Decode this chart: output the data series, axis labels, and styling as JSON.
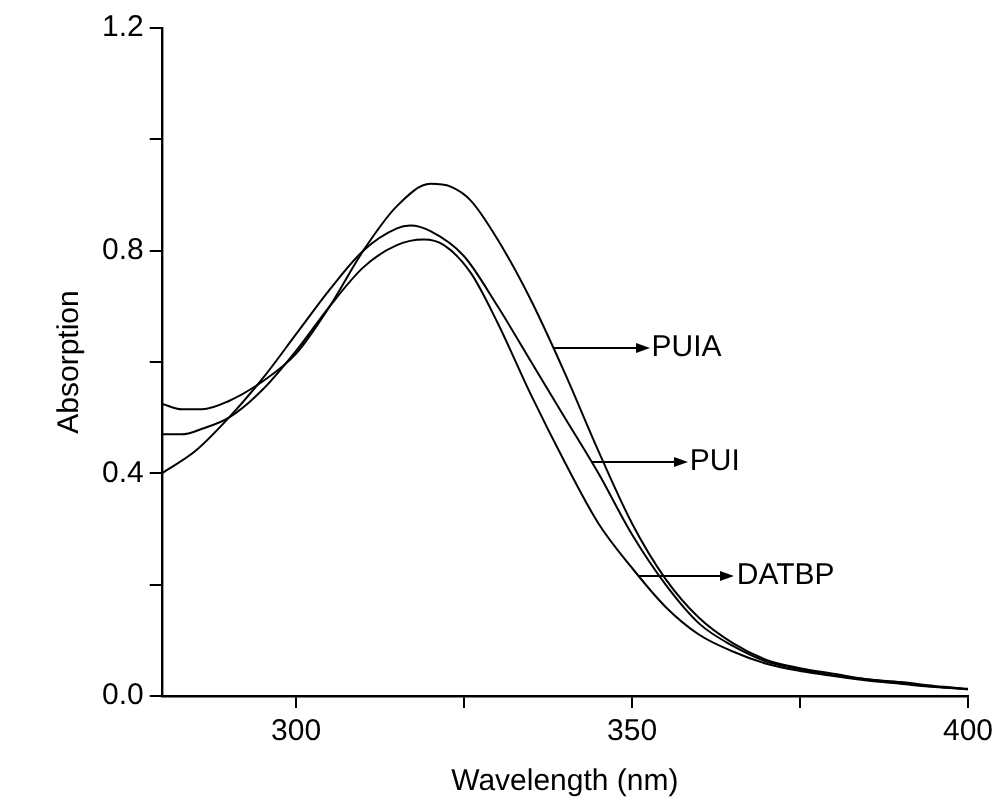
{
  "chart_data": {
    "type": "line",
    "xlabel": "Wavelength (nm)",
    "ylabel": "Absorption",
    "xlim": [
      280,
      400
    ],
    "ylim": [
      0,
      1.2
    ],
    "xticks": [
      300,
      {
        "value": 325,
        "label": null
      },
      350,
      {
        "value": 375,
        "label": null
      },
      400
    ],
    "yticks": [
      "0.0",
      {
        "value": 0.2,
        "label": null
      },
      {
        "value": 0.4,
        "label": "0.4"
      },
      {
        "value": 0.6,
        "label": null
      },
      {
        "value": 0.8,
        "label": "0.8"
      },
      {
        "value": 1.0,
        "label": null
      },
      {
        "value": 1.2,
        "label": "1.2"
      }
    ],
    "grid": false,
    "legend": "right",
    "marker": "none",
    "line_style": "solid",
    "series": [
      {
        "name": "PUIA",
        "color": "#000000",
        "x": [
          280,
          283,
          286,
          290,
          295,
          300,
          305,
          310,
          315,
          320,
          323,
          326,
          330,
          335,
          340,
          345,
          350,
          355,
          360,
          365,
          370,
          375,
          380,
          385,
          390,
          395,
          400
        ],
        "values": [
          0.525,
          0.515,
          0.515,
          0.53,
          0.565,
          0.615,
          0.7,
          0.8,
          0.88,
          0.92,
          0.915,
          0.89,
          0.82,
          0.71,
          0.58,
          0.44,
          0.31,
          0.21,
          0.14,
          0.095,
          0.065,
          0.05,
          0.04,
          0.03,
          0.025,
          0.018,
          0.013
        ]
      },
      {
        "name": "PUI",
        "color": "#000000",
        "x": [
          280,
          285,
          290,
          295,
          300,
          305,
          310,
          315,
          317,
          320,
          325,
          330,
          335,
          340,
          345,
          350,
          355,
          360,
          365,
          370,
          375,
          380,
          385,
          390,
          395,
          400
        ],
        "values": [
          0.4,
          0.44,
          0.5,
          0.57,
          0.65,
          0.73,
          0.8,
          0.84,
          0.845,
          0.835,
          0.79,
          0.7,
          0.6,
          0.5,
          0.4,
          0.29,
          0.2,
          0.13,
          0.09,
          0.062,
          0.048,
          0.037,
          0.03,
          0.023,
          0.017,
          0.012
        ]
      },
      {
        "name": "DATBP",
        "color": "#000000",
        "x": [
          280,
          283,
          286,
          290,
          295,
          300,
          305,
          310,
          315,
          319,
          322,
          326,
          330,
          335,
          340,
          345,
          350,
          355,
          360,
          365,
          370,
          375,
          380,
          385,
          390,
          395,
          400
        ],
        "values": [
          0.47,
          0.47,
          0.48,
          0.5,
          0.55,
          0.62,
          0.7,
          0.77,
          0.81,
          0.82,
          0.81,
          0.76,
          0.67,
          0.54,
          0.42,
          0.31,
          0.23,
          0.16,
          0.11,
          0.08,
          0.058,
          0.045,
          0.036,
          0.028,
          0.022,
          0.016,
          0.012
        ]
      }
    ]
  }
}
